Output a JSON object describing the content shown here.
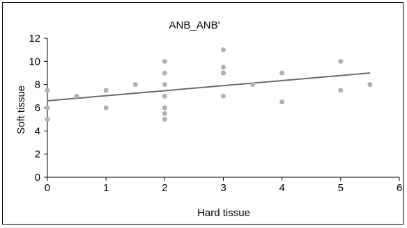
{
  "chart_data": {
    "type": "scatter",
    "title": "ANB_ANB'",
    "xlabel": "Hard tissue",
    "ylabel": "Soft tissue",
    "xlim": [
      0,
      6
    ],
    "ylim": [
      0,
      12
    ],
    "xticks": [
      "0",
      "1",
      "2",
      "3",
      "4",
      "5",
      "6"
    ],
    "yticks": [
      "0",
      "2",
      "4",
      "6",
      "8",
      "10",
      "12"
    ],
    "grid": false,
    "legend": "none",
    "points": [
      {
        "x": 0,
        "y": 7.5
      },
      {
        "x": 0,
        "y": 6
      },
      {
        "x": 0,
        "y": 5
      },
      {
        "x": 0.5,
        "y": 7
      },
      {
        "x": 1,
        "y": 7.5
      },
      {
        "x": 1,
        "y": 6
      },
      {
        "x": 1.5,
        "y": 8
      },
      {
        "x": 2,
        "y": 10
      },
      {
        "x": 2,
        "y": 9
      },
      {
        "x": 2,
        "y": 8
      },
      {
        "x": 2,
        "y": 7
      },
      {
        "x": 2,
        "y": 6
      },
      {
        "x": 2,
        "y": 5.5
      },
      {
        "x": 2,
        "y": 5
      },
      {
        "x": 3,
        "y": 11
      },
      {
        "x": 3,
        "y": 9.5
      },
      {
        "x": 3,
        "y": 9
      },
      {
        "x": 3,
        "y": 7
      },
      {
        "x": 3.5,
        "y": 8
      },
      {
        "x": 4,
        "y": 9
      },
      {
        "x": 4,
        "y": 6.5
      },
      {
        "x": 5,
        "y": 10
      },
      {
        "x": 5,
        "y": 7.5
      },
      {
        "x": 5.5,
        "y": 8
      }
    ],
    "trendline": {
      "x": [
        0,
        5.5
      ],
      "y": [
        6.6,
        9.0
      ]
    },
    "colors": {
      "points": "#b0b0b0",
      "trendline": "#6e6e5e",
      "axis": "#000000"
    }
  }
}
